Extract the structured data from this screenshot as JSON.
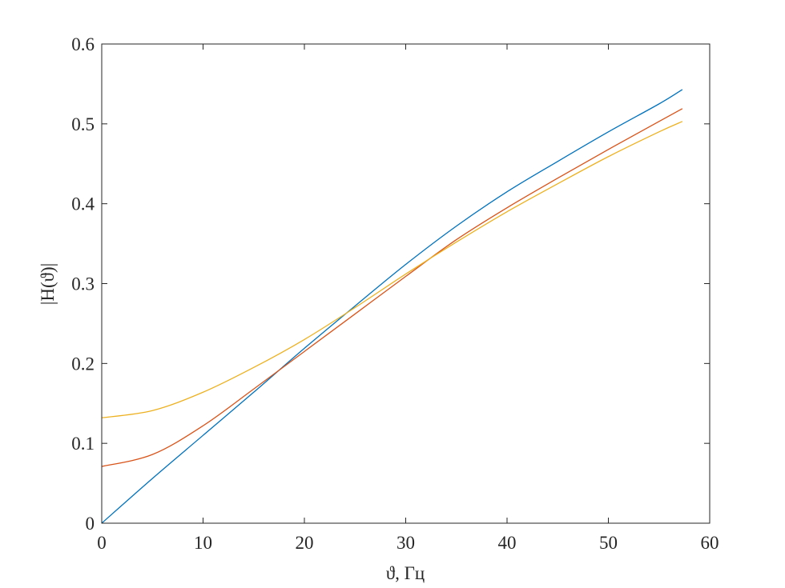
{
  "chart_data": {
    "type": "line",
    "title": "",
    "xlabel": "ϑ, Гц",
    "ylabel": "|H(ϑ)|",
    "xlim": [
      0,
      60
    ],
    "ylim": [
      0,
      0.6
    ],
    "xticks": [
      "0",
      "10",
      "20",
      "30",
      "40",
      "50",
      "60"
    ],
    "yticks": [
      "0",
      "0.1",
      "0.2",
      "0.3",
      "0.4",
      "0.5",
      "0.6"
    ],
    "grid": false,
    "x": [
      0,
      5,
      10,
      15,
      20,
      25,
      30,
      35,
      40,
      45,
      50,
      55,
      57.3
    ],
    "series": [
      {
        "color": "#0072BD",
        "values": [
          0,
          0.056,
          0.11,
          0.164,
          0.219,
          0.272,
          0.324,
          0.372,
          0.415,
          0.453,
          0.49,
          0.525,
          0.543
        ]
      },
      {
        "color": "#D95319",
        "values": [
          0.071,
          0.086,
          0.122,
          0.168,
          0.215,
          0.262,
          0.309,
          0.355,
          0.395,
          0.432,
          0.468,
          0.503,
          0.519
        ]
      },
      {
        "color": "#EDB120",
        "values": [
          0.132,
          0.141,
          0.164,
          0.195,
          0.23,
          0.27,
          0.312,
          0.352,
          0.39,
          0.425,
          0.459,
          0.49,
          0.503
        ]
      }
    ]
  }
}
